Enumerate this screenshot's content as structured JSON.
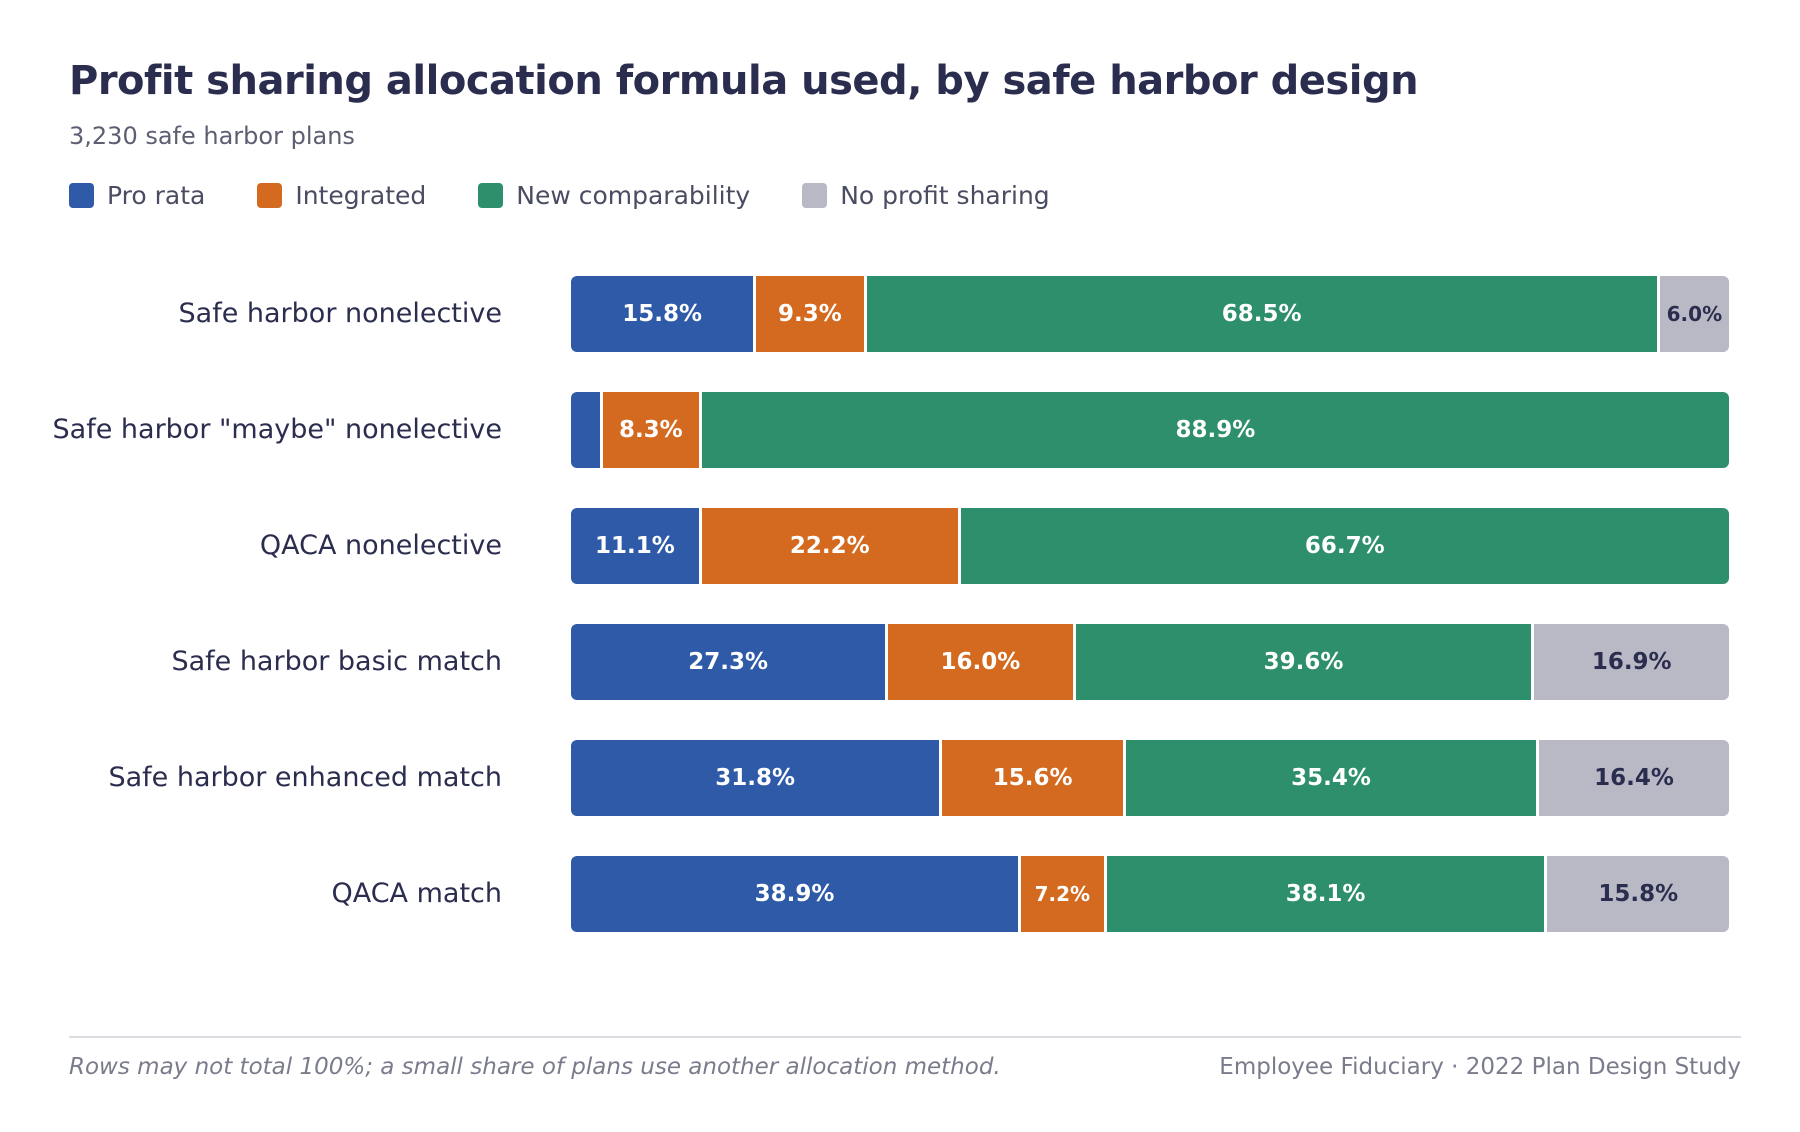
{
  "title": "Profit sharing allocation formula used, by safe harbor design",
  "subtitle": "3,230 safe harbor plans",
  "colors": {
    "pro_rata": "#2f5aa8",
    "integrated": "#d46a1f",
    "new_comparability": "#2e8f6c",
    "no_profit_sharing": "#b9b9c6",
    "text_dark": "#2b2d4f",
    "text_light": "#ffffff"
  },
  "chart_data": {
    "type": "bar",
    "orientation": "horizontal",
    "stacked": true,
    "title": "Profit sharing allocation formula used, by safe harbor design",
    "subtitle": "3,230 safe harbor plans",
    "legend_position": "top-left",
    "grid": false,
    "categories": [
      "Safe harbor nonelective",
      "Safe harbor \"maybe\" nonelective",
      "QACA nonelective",
      "Safe harbor basic match",
      "Safe harbor enhanced match",
      "QACA match"
    ],
    "series": [
      {
        "name": "Pro rata",
        "color": "#2f5aa8",
        "label_color": "#ffffff",
        "values": [
          15.8,
          2.5,
          11.1,
          27.3,
          31.8,
          38.9
        ],
        "labels": [
          "15.8%",
          "",
          "11.1%",
          "27.3%",
          "31.8%",
          "38.9%"
        ]
      },
      {
        "name": "Integrated",
        "color": "#d46a1f",
        "label_color": "#ffffff",
        "values": [
          9.3,
          8.3,
          22.2,
          16.0,
          15.6,
          7.2
        ],
        "labels": [
          "9.3%",
          "8.3%",
          "22.2%",
          "16.0%",
          "15.6%",
          "7.2%"
        ]
      },
      {
        "name": "New comparability",
        "color": "#2e8f6c",
        "label_color": "#ffffff",
        "values": [
          68.5,
          88.9,
          66.7,
          39.6,
          35.4,
          38.1
        ],
        "labels": [
          "68.5%",
          "88.9%",
          "66.7%",
          "39.6%",
          "35.4%",
          "38.1%"
        ]
      },
      {
        "name": "No profit sharing",
        "color": "#b9b9c6",
        "label_color": "#2b2d4f",
        "values": [
          6.0,
          0,
          0,
          16.9,
          16.4,
          15.8
        ],
        "labels": [
          "6.0%",
          "",
          "",
          "16.9%",
          "16.4%",
          "15.8%"
        ]
      }
    ]
  },
  "footer": {
    "note": "Rows may not total 100%; a small share of plans use another allocation method.",
    "source": "Employee Fiduciary · 2022 Plan Design Study"
  }
}
